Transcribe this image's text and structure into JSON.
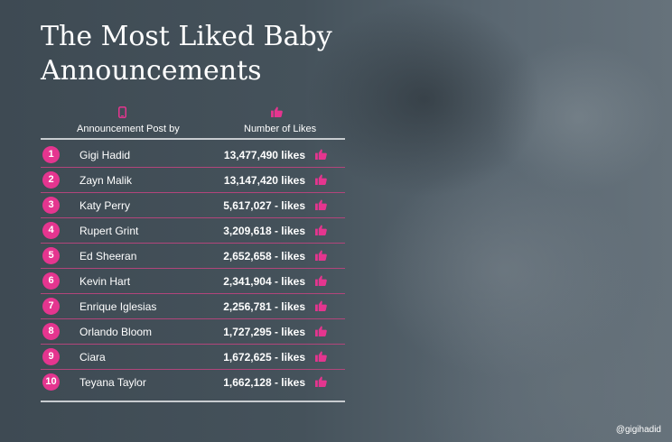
{
  "title_line1": "The Most Liked Baby",
  "title_line2": "Announcements",
  "headers": {
    "post": "Announcement Post by",
    "likes": "Number of Likes",
    "post_icon": "phone-icon",
    "likes_icon": "thumbs-up-icon"
  },
  "credit": "@gigihadid",
  "colors": {
    "accent": "#e5358f",
    "background": "#4a5862",
    "divider": "#b2457b"
  },
  "chart_data": {
    "type": "table",
    "columns": [
      "Announcement Post by",
      "Number of Likes"
    ],
    "rows": [
      {
        "rank": "1",
        "name": "Gigi Hadid",
        "likes": 13477490,
        "likes_text": "13,477,490 likes"
      },
      {
        "rank": "2",
        "name": "Zayn Malik",
        "likes": 13147420,
        "likes_text": "13,147,420 likes"
      },
      {
        "rank": "3",
        "name": "Katy Perry",
        "likes": 5617027,
        "likes_text": "5,617,027 - likes"
      },
      {
        "rank": "4",
        "name": "Rupert Grint",
        "likes": 3209618,
        "likes_text": "3,209,618 - likes"
      },
      {
        "rank": "5",
        "name": "Ed Sheeran",
        "likes": 2652658,
        "likes_text": "2,652,658 - likes"
      },
      {
        "rank": "6",
        "name": "Kevin Hart",
        "likes": 2341904,
        "likes_text": "2,341,904 - likes"
      },
      {
        "rank": "7",
        "name": "Enrique Iglesias",
        "likes": 2256781,
        "likes_text": "2,256,781 - likes"
      },
      {
        "rank": "8",
        "name": "Orlando Bloom",
        "likes": 1727295,
        "likes_text": "1,727,295 - likes"
      },
      {
        "rank": "9",
        "name": "Ciara",
        "likes": 1672625,
        "likes_text": "1,672,625 - likes"
      },
      {
        "rank": "10",
        "name": "Teyana Taylor",
        "likes": 1662128,
        "likes_text": "1,662,128 - likes"
      }
    ]
  }
}
